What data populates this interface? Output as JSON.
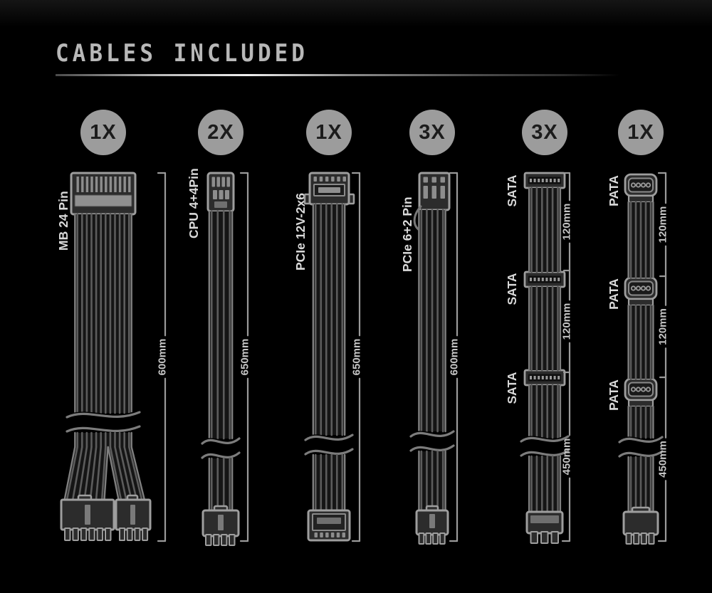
{
  "title": "CABLES INCLUDED",
  "colors": {
    "background": "#000000",
    "badge_bg": "#9c9c9c",
    "badge_text": "#1c1c1c",
    "title_text": "#b8b8b8",
    "cable_label_text": "#d9d9d9",
    "measure_text": "#c6c6c6",
    "outline_gray": "#9a9a9a"
  },
  "cables": [
    {
      "qty": "1X",
      "label": "MB 24 Pin",
      "type": "mb24",
      "measurements": [
        "600mm"
      ]
    },
    {
      "qty": "2X",
      "label": "CPU 4+4Pin",
      "type": "cpu44",
      "measurements": [
        "650mm"
      ]
    },
    {
      "qty": "1X",
      "label": "PCIe 12V-2x6",
      "type": "pcie12v2x6",
      "measurements": [
        "650mm"
      ]
    },
    {
      "qty": "3X",
      "label": "PCIe 6+2 Pin",
      "type": "pcie62",
      "measurements": [
        "600mm"
      ]
    },
    {
      "qty": "3X",
      "label": "SATA",
      "type": "sata",
      "connector_labels": [
        "SATA",
        "SATA",
        "SATA"
      ],
      "measurements": [
        "120mm",
        "120mm",
        "450mm"
      ]
    },
    {
      "qty": "1X",
      "label": "PATA",
      "type": "pata",
      "connector_labels": [
        "PATA",
        "PATA",
        "PATA"
      ],
      "measurements": [
        "120mm",
        "120mm",
        "450mm"
      ]
    }
  ]
}
